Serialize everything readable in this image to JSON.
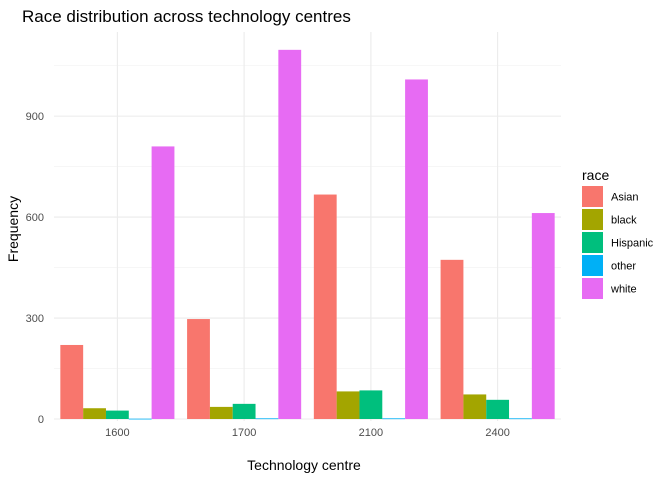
{
  "chart_data": {
    "type": "bar",
    "title": "Race distribution across technology centres",
    "xlabel": "Technology centre",
    "ylabel": "Frequency",
    "categories": [
      "1600",
      "1700",
      "2100",
      "2400"
    ],
    "ylim": [
      0,
      1100
    ],
    "yticks": [
      0,
      300,
      600,
      900
    ],
    "grid": true,
    "legend": {
      "title": "race",
      "position": "right"
    },
    "series": [
      {
        "name": "Asian",
        "color": "#F8766D",
        "values": [
          220,
          297,
          667,
          473
        ]
      },
      {
        "name": "black",
        "color": "#A3A500",
        "values": [
          32,
          36,
          82,
          73
        ]
      },
      {
        "name": "Hispanic",
        "color": "#00BF7D",
        "values": [
          25,
          45,
          85,
          57
        ]
      },
      {
        "name": "other",
        "color": "#00B0F6",
        "values": [
          1,
          2,
          2,
          2
        ]
      },
      {
        "name": "white",
        "color": "#E76BF3",
        "values": [
          810,
          1097,
          1009,
          612
        ]
      }
    ]
  }
}
